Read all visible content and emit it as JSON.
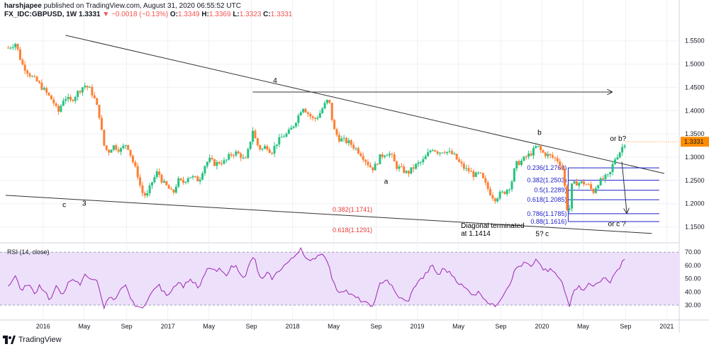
{
  "header": {
    "line1_user": "harshjapee",
    "line1_rest": " published on TradingView.com, August 31, 2020 06:55:52 UTC",
    "symbol": "FX_IDC:GBPUSD, 1W",
    "last": "1.3331",
    "change": "−0.0018 (−0.13%)",
    "o_label": "O:",
    "o": "1.3349",
    "h_label": "H:",
    "h": "1.3369",
    "l_label": "L:",
    "l": "1.3323",
    "c_label": "C:",
    "c": "1.3331"
  },
  "footer": {
    "brand": "TradingView"
  },
  "rsi_label": "RSI (14, close)",
  "colors": {
    "up": "#26c281",
    "down": "#ff7f33",
    "rsi": "#9c27b0",
    "rsi_band": "#ede0fb",
    "fib": "#1e22c8",
    "price_tag": "#ff8c00"
  },
  "chart_data": {
    "type": "candlestick",
    "y_ticks": [
      "1.5500",
      "1.5000",
      "1.4500",
      "1.4000",
      "1.3500",
      "1.3000",
      "1.2500",
      "1.2000",
      "1.1500"
    ],
    "ylim": [
      1.125,
      1.58
    ],
    "x_ticks": [
      {
        "label": "2016",
        "t": 2016.0
      },
      {
        "label": "May",
        "t": 2016.33
      },
      {
        "label": "Sep",
        "t": 2016.67
      },
      {
        "label": "2017",
        "t": 2017.0
      },
      {
        "label": "May",
        "t": 2017.33
      },
      {
        "label": "Sep",
        "t": 2017.67
      },
      {
        "label": "2018",
        "t": 2018.0
      },
      {
        "label": "May",
        "t": 2018.33
      },
      {
        "label": "Sep",
        "t": 2018.67
      },
      {
        "label": "2019",
        "t": 2019.0
      },
      {
        "label": "May",
        "t": 2019.33
      },
      {
        "label": "Sep",
        "t": 2019.67
      },
      {
        "label": "2020",
        "t": 2020.0
      },
      {
        "label": "May",
        "t": 2020.33
      },
      {
        "label": "Sep",
        "t": 2020.67
      },
      {
        "label": "2021",
        "t": 2021.0
      }
    ],
    "xlim": [
      2015.7,
      2021.1
    ],
    "last_price": "1.3331",
    "price_anchors": [
      [
        2015.72,
        1.535
      ],
      [
        2015.78,
        1.545
      ],
      [
        2015.83,
        1.5
      ],
      [
        2015.9,
        1.475
      ],
      [
        2015.96,
        1.46
      ],
      [
        2016.02,
        1.44
      ],
      [
        2016.08,
        1.42
      ],
      [
        2016.12,
        1.395
      ],
      [
        2016.17,
        1.43
      ],
      [
        2016.22,
        1.42
      ],
      [
        2016.28,
        1.44
      ],
      [
        2016.33,
        1.455
      ],
      [
        2016.38,
        1.445
      ],
      [
        2016.42,
        1.42
      ],
      [
        2016.46,
        1.38
      ],
      [
        2016.48,
        1.33
      ],
      [
        2016.52,
        1.31
      ],
      [
        2016.56,
        1.325
      ],
      [
        2016.62,
        1.315
      ],
      [
        2016.67,
        1.33
      ],
      [
        2016.72,
        1.29
      ],
      [
        2016.76,
        1.26
      ],
      [
        2016.79,
        1.225
      ],
      [
        2016.83,
        1.215
      ],
      [
        2016.87,
        1.245
      ],
      [
        2016.92,
        1.27
      ],
      [
        2016.96,
        1.245
      ],
      [
        2017.0,
        1.235
      ],
      [
        2017.04,
        1.22
      ],
      [
        2017.08,
        1.25
      ],
      [
        2017.12,
        1.245
      ],
      [
        2017.17,
        1.26
      ],
      [
        2017.21,
        1.255
      ],
      [
        2017.25,
        1.25
      ],
      [
        2017.29,
        1.28
      ],
      [
        2017.33,
        1.295
      ],
      [
        2017.38,
        1.285
      ],
      [
        2017.42,
        1.29
      ],
      [
        2017.46,
        1.29
      ],
      [
        2017.5,
        1.305
      ],
      [
        2017.54,
        1.31
      ],
      [
        2017.58,
        1.305
      ],
      [
        2017.62,
        1.29
      ],
      [
        2017.65,
        1.32
      ],
      [
        2017.68,
        1.36
      ],
      [
        2017.71,
        1.33
      ],
      [
        2017.75,
        1.315
      ],
      [
        2017.79,
        1.325
      ],
      [
        2017.83,
        1.31
      ],
      [
        2017.87,
        1.33
      ],
      [
        2017.92,
        1.345
      ],
      [
        2017.96,
        1.35
      ],
      [
        2018.0,
        1.365
      ],
      [
        2018.04,
        1.385
      ],
      [
        2018.08,
        1.41
      ],
      [
        2018.12,
        1.395
      ],
      [
        2018.17,
        1.38
      ],
      [
        2018.21,
        1.39
      ],
      [
        2018.25,
        1.41
      ],
      [
        2018.29,
        1.425
      ],
      [
        2018.33,
        1.36
      ],
      [
        2018.37,
        1.34
      ],
      [
        2018.42,
        1.335
      ],
      [
        2018.46,
        1.33
      ],
      [
        2018.5,
        1.32
      ],
      [
        2018.54,
        1.31
      ],
      [
        2018.58,
        1.295
      ],
      [
        2018.62,
        1.28
      ],
      [
        2018.65,
        1.275
      ],
      [
        2018.7,
        1.3
      ],
      [
        2018.75,
        1.31
      ],
      [
        2018.79,
        1.305
      ],
      [
        2018.83,
        1.28
      ],
      [
        2018.87,
        1.275
      ],
      [
        2018.92,
        1.265
      ],
      [
        2018.96,
        1.275
      ],
      [
        2019.0,
        1.285
      ],
      [
        2019.04,
        1.29
      ],
      [
        2019.08,
        1.305
      ],
      [
        2019.12,
        1.32
      ],
      [
        2019.17,
        1.31
      ],
      [
        2019.21,
        1.315
      ],
      [
        2019.25,
        1.31
      ],
      [
        2019.29,
        1.305
      ],
      [
        2019.33,
        1.29
      ],
      [
        2019.38,
        1.275
      ],
      [
        2019.42,
        1.27
      ],
      [
        2019.46,
        1.26
      ],
      [
        2019.5,
        1.265
      ],
      [
        2019.54,
        1.245
      ],
      [
        2019.58,
        1.225
      ],
      [
        2019.62,
        1.21
      ],
      [
        2019.66,
        1.22
      ],
      [
        2019.7,
        1.225
      ],
      [
        2019.75,
        1.24
      ],
      [
        2019.79,
        1.285
      ],
      [
        2019.83,
        1.29
      ],
      [
        2019.87,
        1.3
      ],
      [
        2019.92,
        1.31
      ],
      [
        2019.96,
        1.325
      ],
      [
        2020.0,
        1.31
      ],
      [
        2020.04,
        1.305
      ],
      [
        2020.08,
        1.3
      ],
      [
        2020.12,
        1.295
      ],
      [
        2020.16,
        1.28
      ],
      [
        2020.19,
        1.22
      ],
      [
        2020.21,
        1.165
      ],
      [
        2020.24,
        1.24
      ],
      [
        2020.28,
        1.245
      ],
      [
        2020.33,
        1.245
      ],
      [
        2020.37,
        1.24
      ],
      [
        2020.41,
        1.225
      ],
      [
        2020.45,
        1.245
      ],
      [
        2020.5,
        1.255
      ],
      [
        2020.54,
        1.26
      ],
      [
        2020.58,
        1.295
      ],
      [
        2020.62,
        1.31
      ],
      [
        2020.66,
        1.33
      ],
      [
        2020.67,
        1.3331
      ]
    ],
    "trendlines": [
      {
        "name": "upper-wedge",
        "from": [
          2016.18,
          1.562
        ],
        "to": [
          2020.98,
          1.265
        ]
      },
      {
        "name": "lower-wedge",
        "from": [
          2015.7,
          1.218
        ],
        "to": [
          2020.88,
          1.136
        ]
      },
      {
        "name": "horizontal-arrow",
        "from": [
          2017.68,
          1.44
        ],
        "to": [
          2020.56,
          1.44
        ]
      },
      {
        "name": "down-arrow",
        "from": [
          2020.64,
          1.29
        ],
        "to": [
          2020.68,
          1.18
        ]
      }
    ],
    "fib_levels": [
      {
        "label": "0.236(1.2769)",
        "value": 1.2769
      },
      {
        "label": "0.382(1.2503)",
        "value": 1.2503
      },
      {
        "label": "0.5(1.2289)",
        "value": 1.2289
      },
      {
        "label": "0.618(1.2085)",
        "value": 1.2085
      },
      {
        "label": "0.786(1.1785)",
        "value": 1.1785
      },
      {
        "label": "0.88(1.1616)",
        "value": 1.1616
      }
    ],
    "fib_x_range": [
      2020.21,
      2020.94
    ],
    "annotations": [
      {
        "text": "4",
        "t": 2017.86,
        "y": 1.46
      },
      {
        "text": "b",
        "t": 2019.98,
        "y": 1.348
      },
      {
        "text": "or b?",
        "t": 2020.61,
        "y": 1.335
      },
      {
        "text": "a",
        "t": 2018.75,
        "y": 1.243
      },
      {
        "text": "c",
        "t": 2016.17,
        "y": 1.193
      },
      {
        "text": "3",
        "t": 2016.33,
        "y": 1.196
      },
      {
        "text": "or c ?",
        "t": 2020.6,
        "y": 1.152
      },
      {
        "text": "5?",
        "t": 2019.98,
        "y": 1.13
      },
      {
        "text": "c",
        "t": 2020.04,
        "y": 1.13
      }
    ],
    "red_labels": [
      {
        "text": "0.382(1.1741)",
        "t": 2018.48,
        "y": 1.183
      },
      {
        "text": "0.618(1.1291)",
        "t": 2018.48,
        "y": 1.139
      }
    ],
    "diagonal_note": {
      "line1": "Diagonal terminated",
      "line2": "at 1.1414",
      "t": 2019.35,
      "y": 1.148
    },
    "rsi": {
      "name": "RSI (14, close)",
      "y_ticks": [
        "70.00",
        "60.00",
        "50.00",
        "40.00",
        "30.00"
      ],
      "ylim": [
        22,
        76
      ],
      "band": [
        30,
        70
      ],
      "anchors": [
        [
          2015.72,
          45
        ],
        [
          2015.78,
          52
        ],
        [
          2015.83,
          40
        ],
        [
          2015.88,
          47
        ],
        [
          2015.93,
          38
        ],
        [
          2015.97,
          45
        ],
        [
          2016.02,
          40
        ],
        [
          2016.06,
          33
        ],
        [
          2016.1,
          44
        ],
        [
          2016.15,
          38
        ],
        [
          2016.2,
          46
        ],
        [
          2016.25,
          49
        ],
        [
          2016.3,
          45
        ],
        [
          2016.33,
          55
        ],
        [
          2016.38,
          48
        ],
        [
          2016.42,
          51
        ],
        [
          2016.46,
          40
        ],
        [
          2016.49,
          28
        ],
        [
          2016.53,
          36
        ],
        [
          2016.58,
          33
        ],
        [
          2016.62,
          41
        ],
        [
          2016.67,
          45
        ],
        [
          2016.71,
          32
        ],
        [
          2016.75,
          30
        ],
        [
          2016.79,
          26
        ],
        [
          2016.83,
          34
        ],
        [
          2016.88,
          40
        ],
        [
          2016.92,
          46
        ],
        [
          2016.96,
          40
        ],
        [
          2017.0,
          38
        ],
        [
          2017.04,
          43
        ],
        [
          2017.08,
          48
        ],
        [
          2017.13,
          44
        ],
        [
          2017.17,
          50
        ],
        [
          2017.21,
          47
        ],
        [
          2017.25,
          42
        ],
        [
          2017.29,
          52
        ],
        [
          2017.33,
          59
        ],
        [
          2017.38,
          55
        ],
        [
          2017.42,
          57
        ],
        [
          2017.46,
          52
        ],
        [
          2017.5,
          58
        ],
        [
          2017.54,
          60
        ],
        [
          2017.58,
          55
        ],
        [
          2017.62,
          50
        ],
        [
          2017.65,
          60
        ],
        [
          2017.69,
          68
        ],
        [
          2017.72,
          55
        ],
        [
          2017.76,
          49
        ],
        [
          2017.8,
          54
        ],
        [
          2017.84,
          50
        ],
        [
          2017.88,
          55
        ],
        [
          2017.92,
          59
        ],
        [
          2017.96,
          62
        ],
        [
          2018.0,
          65
        ],
        [
          2018.04,
          70
        ],
        [
          2018.07,
          74
        ],
        [
          2018.1,
          66
        ],
        [
          2018.14,
          62
        ],
        [
          2018.18,
          66
        ],
        [
          2018.22,
          69
        ],
        [
          2018.27,
          67
        ],
        [
          2018.3,
          56
        ],
        [
          2018.33,
          46
        ],
        [
          2018.37,
          40
        ],
        [
          2018.42,
          42
        ],
        [
          2018.46,
          38
        ],
        [
          2018.5,
          36
        ],
        [
          2018.54,
          34
        ],
        [
          2018.58,
          32
        ],
        [
          2018.62,
          29
        ],
        [
          2018.66,
          32
        ],
        [
          2018.7,
          46
        ],
        [
          2018.75,
          50
        ],
        [
          2018.79,
          45
        ],
        [
          2018.83,
          38
        ],
        [
          2018.87,
          35
        ],
        [
          2018.92,
          32
        ],
        [
          2018.96,
          40
        ],
        [
          2019.0,
          48
        ],
        [
          2019.04,
          50
        ],
        [
          2019.08,
          55
        ],
        [
          2019.12,
          60
        ],
        [
          2019.17,
          52
        ],
        [
          2019.21,
          58
        ],
        [
          2019.25,
          55
        ],
        [
          2019.29,
          52
        ],
        [
          2019.33,
          47
        ],
        [
          2019.38,
          43
        ],
        [
          2019.42,
          40
        ],
        [
          2019.46,
          38
        ],
        [
          2019.5,
          40
        ],
        [
          2019.54,
          35
        ],
        [
          2019.58,
          31
        ],
        [
          2019.62,
          29
        ],
        [
          2019.66,
          34
        ],
        [
          2019.7,
          40
        ],
        [
          2019.75,
          48
        ],
        [
          2019.79,
          58
        ],
        [
          2019.83,
          60
        ],
        [
          2019.87,
          62
        ],
        [
          2019.92,
          58
        ],
        [
          2019.96,
          65
        ],
        [
          2020.0,
          58
        ],
        [
          2020.04,
          55
        ],
        [
          2020.08,
          57
        ],
        [
          2020.12,
          52
        ],
        [
          2020.16,
          47
        ],
        [
          2020.19,
          38
        ],
        [
          2020.22,
          30
        ],
        [
          2020.25,
          42
        ],
        [
          2020.29,
          44
        ],
        [
          2020.33,
          42
        ],
        [
          2020.37,
          46
        ],
        [
          2020.41,
          44
        ],
        [
          2020.45,
          48
        ],
        [
          2020.5,
          50
        ],
        [
          2020.54,
          47
        ],
        [
          2020.58,
          54
        ],
        [
          2020.62,
          58
        ],
        [
          2020.65,
          64
        ],
        [
          2020.67,
          63
        ]
      ]
    }
  }
}
